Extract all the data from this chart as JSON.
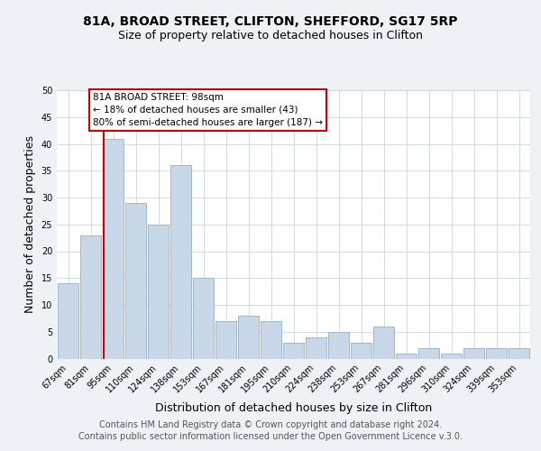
{
  "title": "81A, BROAD STREET, CLIFTON, SHEFFORD, SG17 5RP",
  "subtitle": "Size of property relative to detached houses in Clifton",
  "xlabel": "Distribution of detached houses by size in Clifton",
  "ylabel": "Number of detached properties",
  "bar_labels": [
    "67sqm",
    "81sqm",
    "95sqm",
    "110sqm",
    "124sqm",
    "138sqm",
    "153sqm",
    "167sqm",
    "181sqm",
    "195sqm",
    "210sqm",
    "224sqm",
    "238sqm",
    "253sqm",
    "267sqm",
    "281sqm",
    "296sqm",
    "310sqm",
    "324sqm",
    "339sqm",
    "353sqm"
  ],
  "bar_values": [
    14,
    23,
    41,
    29,
    25,
    36,
    15,
    7,
    8,
    7,
    3,
    4,
    5,
    3,
    6,
    1,
    2,
    1,
    2,
    2,
    2
  ],
  "bar_color": "#c8d8e8",
  "bar_edge_color": "#a0b8cc",
  "highlight_line_color": "#cc0000",
  "annotation_text": "81A BROAD STREET: 98sqm\n← 18% of detached houses are smaller (43)\n80% of semi-detached houses are larger (187) →",
  "annotation_box_color": "#ffffff",
  "annotation_box_edge": "#cc0000",
  "ylim": [
    0,
    50
  ],
  "yticks": [
    0,
    5,
    10,
    15,
    20,
    25,
    30,
    35,
    40,
    45,
    50
  ],
  "footer1": "Contains HM Land Registry data © Crown copyright and database right 2024.",
  "footer2": "Contains public sector information licensed under the Open Government Licence v.3.0.",
  "title_fontsize": 10,
  "subtitle_fontsize": 9,
  "axis_label_fontsize": 9,
  "tick_fontsize": 7,
  "footer_fontsize": 7,
  "background_color": "#eef2f7",
  "plot_background_color": "#ffffff",
  "grid_color": "#c8d4e0"
}
